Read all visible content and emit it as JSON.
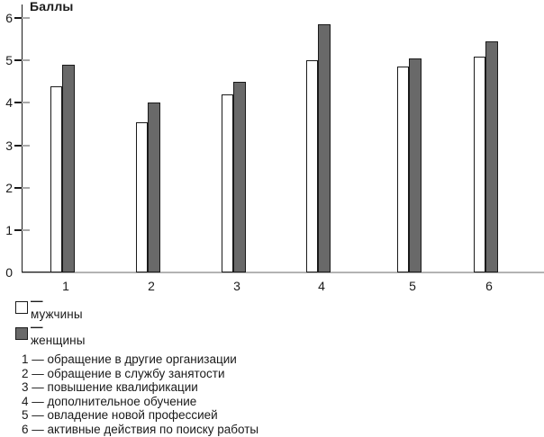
{
  "chart_data": {
    "type": "bar",
    "title": "Баллы",
    "ylabel": "Баллы",
    "xlabel": "",
    "categories": [
      "1",
      "2",
      "3",
      "4",
      "5",
      "6"
    ],
    "series": [
      {
        "name": "мужчины",
        "color": "#ffffff",
        "values": [
          4.4,
          3.55,
          4.2,
          5.0,
          4.85,
          5.1
        ]
      },
      {
        "name": "женщины",
        "color": "#696969",
        "values": [
          4.9,
          4.0,
          4.5,
          5.85,
          5.05,
          5.45
        ]
      }
    ],
    "ylim": [
      0,
      6
    ],
    "yticks": [
      "0",
      "1",
      "2",
      "3",
      "4",
      "5",
      "6"
    ],
    "grid": false,
    "legend_position": "below-left"
  },
  "legend": [
    {
      "dash": "—",
      "label": "мужчины",
      "swatch_color": "#ffffff"
    },
    {
      "dash": "—",
      "label": "женщины",
      "swatch_color": "#696969"
    }
  ],
  "footnotes": [
    "1 — обращение в другие организации",
    "2 — обращение в службу занятости",
    "3 — повышение квалификации",
    "4 — дополнительное обучение",
    "5 — овладение новой профессией",
    "6 — активные действия по поиску работы"
  ]
}
